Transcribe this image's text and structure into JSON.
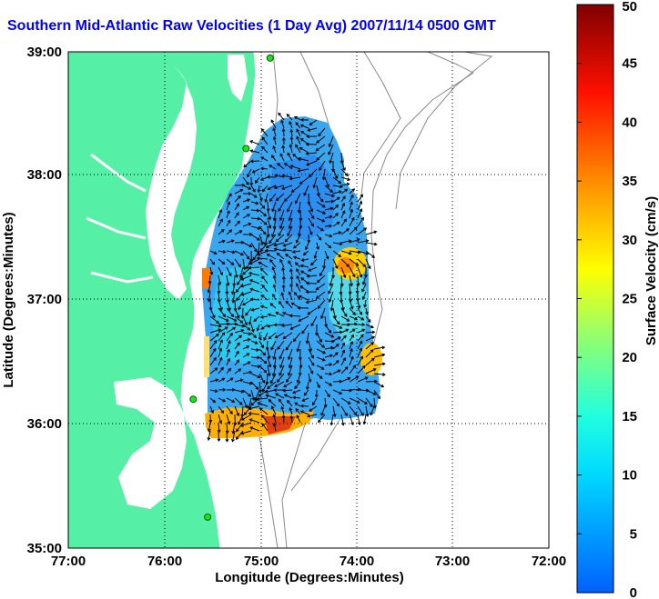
{
  "title": "Southern Mid-Atlantic Raw Velocities (1 Day Avg) 2007/11/14 0500 GMT",
  "map": {
    "xlabel": "Longitude (Degrees:Minutes)",
    "ylabel": "Latitude (Degrees:Minutes)",
    "lon_range": [
      -77,
      -72
    ],
    "lat_range": [
      35,
      39
    ],
    "x_ticks": [
      "77:00",
      "76:00",
      "75:00",
      "74:00",
      "73:00",
      "72:00"
    ],
    "y_ticks": [
      "35:00",
      "36:00",
      "37:00",
      "38:00",
      "39:00"
    ],
    "grid": "dotted",
    "land_color": "#55f0a6",
    "contour_color": "#8a8a8a"
  },
  "colorbar": {
    "label": "Surface Velocity (cm/s)",
    "min": 0,
    "max": 50,
    "ticks": [
      "0",
      "5",
      "10",
      "15",
      "20",
      "25",
      "30",
      "35",
      "40",
      "45",
      "50"
    ],
    "colormap": "jet"
  },
  "radar_sites": [
    {
      "lon": -74.9,
      "lat": 38.95
    },
    {
      "lon": -75.15,
      "lat": 38.22
    },
    {
      "lon": -75.7,
      "lat": 36.2
    },
    {
      "lon": -75.55,
      "lat": 35.25
    }
  ]
}
